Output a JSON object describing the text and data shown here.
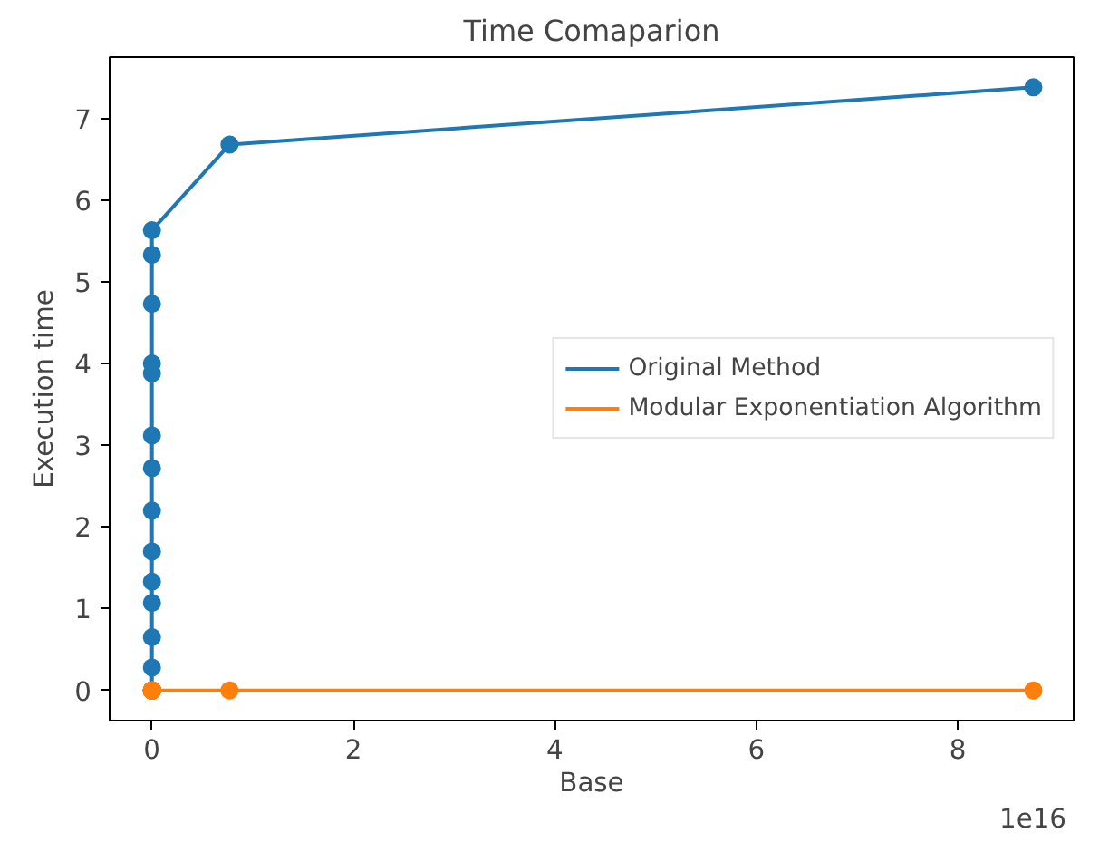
{
  "chart_data": {
    "type": "line",
    "title": "Time Comaparion",
    "xlabel": "Base",
    "ylabel": "Execution time",
    "x": [
      0,
      0,
      0,
      0,
      0,
      0,
      0,
      0,
      0,
      0,
      0,
      0,
      0,
      0,
      0,
      0.77,
      8.75
    ],
    "series": [
      {
        "name": "Original Method",
        "color": "#1f77b4",
        "values": [
          0,
          null,
          0.28,
          0.65,
          1.07,
          1.33,
          1.7,
          2.2,
          2.72,
          3.12,
          3.88,
          4.0,
          4.73,
          5.33,
          5.63,
          6.68,
          7.38
        ]
      },
      {
        "name": "Modular Exponentiation Algorithm",
        "color": "#ff7f0e",
        "values": [
          0,
          0,
          0,
          0,
          0,
          0,
          0,
          0,
          0,
          0,
          0,
          0,
          0,
          0,
          0,
          0,
          0
        ]
      }
    ],
    "xlim": [
      -0.42,
      9.15
    ],
    "ylim": [
      -0.37,
      7.75
    ],
    "xticks": [
      0,
      2,
      4,
      6,
      8
    ],
    "yticks": [
      0,
      1,
      2,
      3,
      4,
      5,
      6,
      7
    ],
    "annotations": [
      "1e16"
    ],
    "marker": "circle",
    "legend": "right",
    "grid": false
  }
}
